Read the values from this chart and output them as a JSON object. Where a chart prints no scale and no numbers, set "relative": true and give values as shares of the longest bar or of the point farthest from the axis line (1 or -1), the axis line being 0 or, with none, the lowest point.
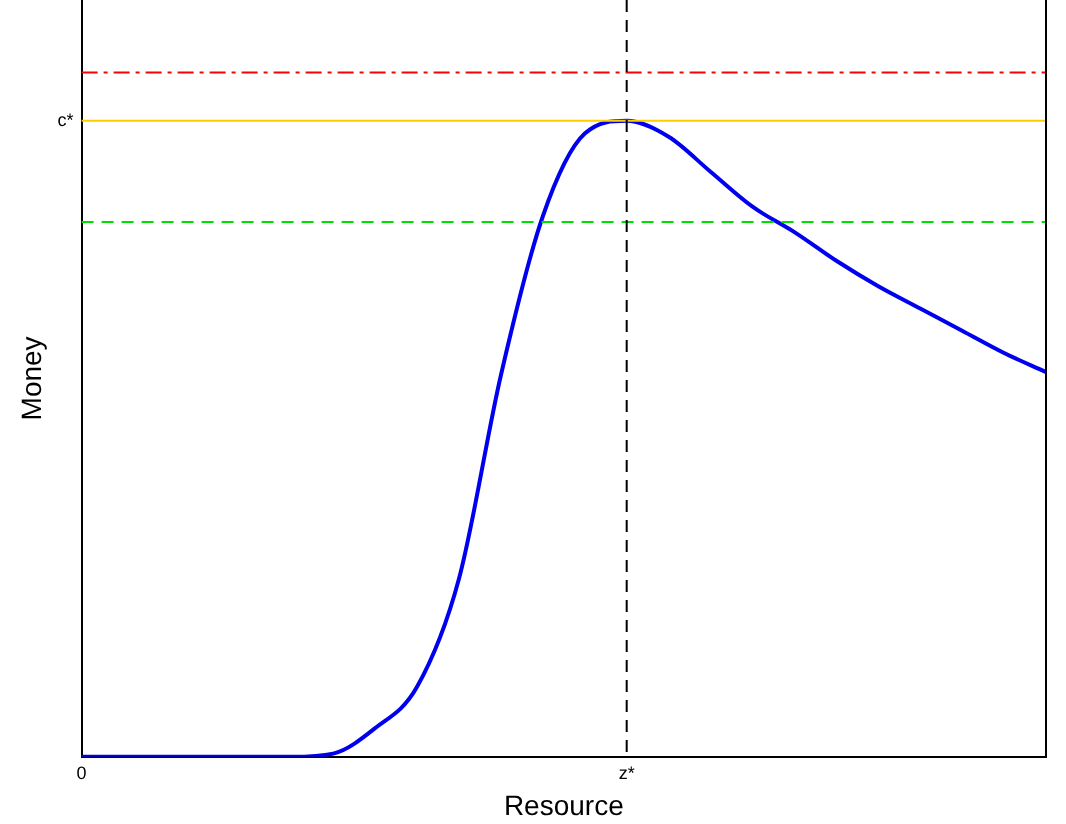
{
  "chart_data": {
    "type": "line",
    "xlabel": "Resource",
    "ylabel": "Money",
    "relative": true,
    "categories": [
      "0",
      null,
      null,
      null,
      null,
      null,
      null,
      null,
      null,
      null,
      null,
      null,
      null,
      "z*",
      null,
      null,
      null,
      null,
      null,
      null,
      null,
      null,
      null,
      null
    ],
    "series": [
      {
        "color": "#0000ee",
        "values": [
          0,
          0,
          0,
          0,
          0,
          0,
          0.005,
          0.045,
          0.11,
          0.28,
          0.6,
          0.85,
          0.98,
          1,
          0.975,
          0.92,
          0.865,
          0.825,
          0.78,
          0.74,
          0.705,
          0.67,
          0.635,
          0.605
        ]
      }
    ],
    "ref_lines": [
      {
        "axis": "y",
        "value": 1.076,
        "color": "#ff0000",
        "line_style": "dashdot"
      },
      {
        "axis": "y",
        "value": 1,
        "label": "c*",
        "color": "#ffcc00",
        "line_style": "solid"
      },
      {
        "axis": "y",
        "value": 0.841,
        "color": "#00dd00",
        "line_style": "dashed"
      },
      {
        "axis": "x",
        "value": "z*",
        "color": "#000000",
        "line_style": "dashed"
      }
    ],
    "grid": false,
    "legend": false,
    "marker": "none",
    "line_style": "solid"
  }
}
